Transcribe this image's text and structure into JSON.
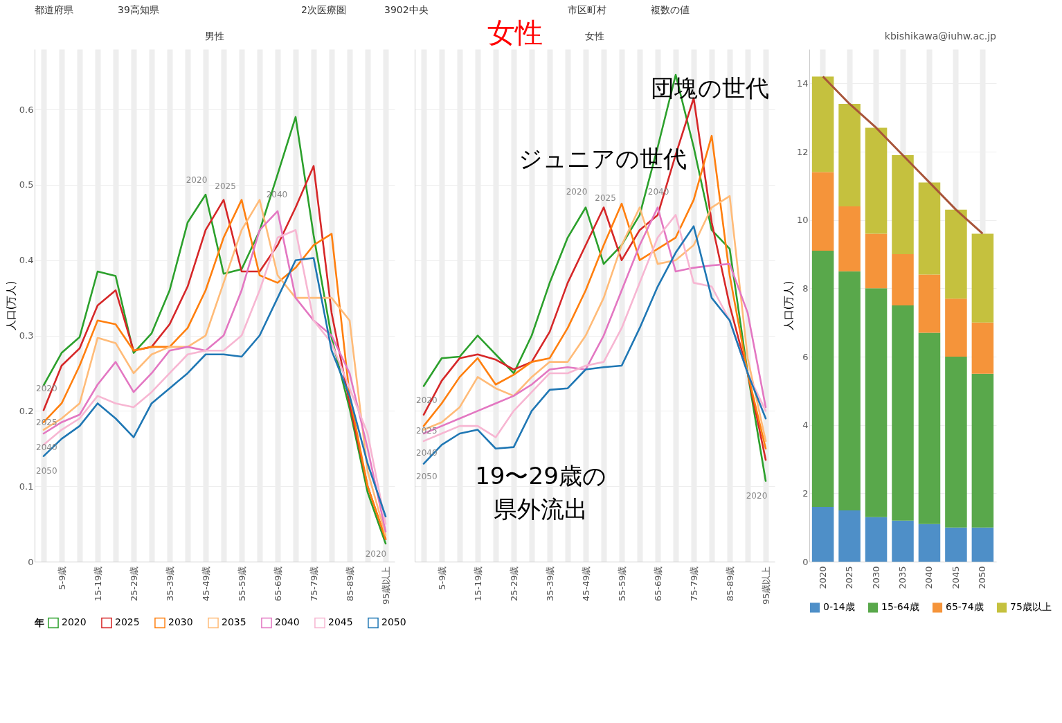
{
  "chart_data": [
    {
      "type": "line",
      "title": "男性",
      "ylabel": "人口(万人)",
      "legend_title": "年",
      "legend": "bottom",
      "grid": true,
      "categories": [
        null,
        "5-9歳",
        null,
        "15-19歳",
        null,
        "25-29歳",
        null,
        "35-39歳",
        null,
        "45-49歳",
        null,
        "55-59歳",
        null,
        "65-69歳",
        null,
        "75-79歳",
        null,
        "85-89歳",
        null,
        "95歳以上"
      ],
      "ylim": [
        0,
        0.68
      ],
      "yticks": [
        0,
        0.1,
        0.2,
        0.3,
        0.4,
        0.5,
        0.6
      ],
      "series": [
        {
          "name": "2020",
          "color": "#2ca02c",
          "values": [
            0.234,
            0.277,
            0.298,
            0.385,
            0.379,
            0.277,
            0.303,
            0.36,
            0.45,
            0.487,
            0.382,
            0.388,
            0.439,
            0.514,
            0.59,
            0.433,
            0.297,
            0.203,
            0.092,
            0.024
          ]
        },
        {
          "name": "2025",
          "color": "#d62728",
          "values": [
            0.201,
            0.26,
            0.283,
            0.34,
            0.36,
            0.28,
            0.285,
            0.315,
            0.365,
            0.44,
            0.48,
            0.385,
            0.385,
            0.42,
            0.47,
            0.525,
            0.33,
            0.21,
            0.1,
            0.03
          ]
        },
        {
          "name": "2030",
          "color": "#ff7f0e",
          "values": [
            0.185,
            0.21,
            0.26,
            0.32,
            0.315,
            0.28,
            0.285,
            0.285,
            0.31,
            0.36,
            0.43,
            0.48,
            0.38,
            0.37,
            0.39,
            0.42,
            0.435,
            0.22,
            0.1,
            0.03
          ]
        },
        {
          "name": "2035",
          "color": "#ffbb78",
          "values": [
            0.175,
            0.19,
            0.21,
            0.297,
            0.29,
            0.25,
            0.275,
            0.285,
            0.285,
            0.3,
            0.37,
            0.44,
            0.48,
            0.38,
            0.35,
            0.35,
            0.35,
            0.32,
            0.12,
            0.035
          ]
        },
        {
          "name": "2040",
          "color": "#e377c2",
          "values": [
            0.17,
            0.185,
            0.195,
            0.235,
            0.265,
            0.225,
            0.25,
            0.28,
            0.285,
            0.28,
            0.3,
            0.36,
            0.44,
            0.465,
            0.35,
            0.32,
            0.3,
            0.25,
            0.15,
            0.04
          ]
        },
        {
          "name": "2045",
          "color": "#f7b6d2",
          "values": [
            0.155,
            0.175,
            0.19,
            0.22,
            0.21,
            0.205,
            0.225,
            0.25,
            0.275,
            0.28,
            0.28,
            0.3,
            0.36,
            0.43,
            0.44,
            0.32,
            0.29,
            0.23,
            0.17,
            0.05
          ]
        },
        {
          "name": "2050",
          "color": "#1f77b4",
          "values": [
            0.14,
            0.163,
            0.18,
            0.21,
            0.19,
            0.165,
            0.21,
            0.23,
            0.25,
            0.275,
            0.275,
            0.272,
            0.3,
            0.35,
            0.4,
            0.403,
            0.28,
            0.22,
            0.13,
            0.06
          ]
        }
      ],
      "annotations": [
        "都道府県",
        "39高知県",
        "2次医療圏",
        "3902中央",
        "市区町村",
        "複数の値",
        "2020",
        "2025",
        "2040",
        "2050",
        "2020",
        "2025",
        "2040",
        "2020"
      ]
    },
    {
      "type": "line",
      "title": "女性",
      "grid": true,
      "tick_labels": "x",
      "categories": [
        null,
        "5-9歳",
        null,
        "15-19歳",
        null,
        "25-29歳",
        null,
        "35-39歳",
        null,
        "45-49歳",
        null,
        "55-59歳",
        null,
        "65-69歳",
        null,
        "75-79歳",
        null,
        "85-89歳",
        null,
        "95歳以上"
      ],
      "ylim": [
        0,
        0.68
      ],
      "yticks": [
        0,
        0.1,
        0.2,
        0.3,
        0.4,
        0.5,
        0.6
      ],
      "series": [
        {
          "color": "#2ca02c",
          "values": [
            0.233,
            0.27,
            0.272,
            0.3,
            0.275,
            0.25,
            0.3,
            0.37,
            0.43,
            0.47,
            0.395,
            0.42,
            0.46,
            0.55,
            0.646,
            0.55,
            0.44,
            0.415,
            0.25,
            0.107
          ]
        },
        {
          "color": "#d62728",
          "values": [
            0.195,
            0.24,
            0.27,
            0.275,
            0.268,
            0.255,
            0.265,
            0.305,
            0.37,
            0.42,
            0.47,
            0.4,
            0.44,
            0.46,
            0.54,
            0.615,
            0.45,
            0.34,
            0.25,
            0.135
          ]
        },
        {
          "color": "#ff7f0e",
          "values": [
            0.18,
            0.21,
            0.245,
            0.27,
            0.235,
            0.248,
            0.265,
            0.27,
            0.31,
            0.36,
            0.42,
            0.475,
            0.4,
            0.415,
            0.43,
            0.48,
            0.565,
            0.38,
            0.25,
            0.15
          ]
        },
        {
          "color": "#ffbb78",
          "values": [
            0.175,
            0.185,
            0.205,
            0.245,
            0.23,
            0.22,
            0.245,
            0.265,
            0.265,
            0.3,
            0.35,
            0.42,
            0.47,
            0.395,
            0.4,
            0.42,
            0.47,
            0.485,
            0.27,
            0.16
          ]
        },
        {
          "color": "#e377c2",
          "values": [
            0.17,
            0.18,
            0.19,
            0.2,
            0.21,
            0.22,
            0.235,
            0.255,
            0.258,
            0.255,
            0.3,
            0.36,
            0.42,
            0.47,
            0.385,
            0.39,
            0.393,
            0.395,
            0.33,
            0.205
          ]
        },
        {
          "color": "#f7b6d2",
          "values": [
            0.16,
            0.17,
            0.18,
            0.18,
            0.165,
            0.2,
            0.225,
            0.25,
            0.25,
            0.26,
            0.265,
            0.31,
            0.37,
            0.43,
            0.46,
            0.37,
            0.365,
            0.32,
            0.25,
            0.2
          ]
        },
        {
          "color": "#1f77b4",
          "values": [
            0.13,
            0.155,
            0.17,
            0.175,
            0.15,
            0.152,
            0.2,
            0.228,
            0.23,
            0.255,
            0.258,
            0.26,
            0.31,
            0.365,
            0.41,
            0.445,
            0.35,
            0.32,
            0.25,
            0.19
          ]
        }
      ],
      "annotations": [
        "女性",
        "団塊の世代",
        "ジュニアの世代",
        "19〜29歳の",
        "県外流出",
        "2020",
        "2025",
        "2040",
        "2050",
        "2020",
        "2025",
        "2040",
        "2020"
      ]
    },
    {
      "type": "bar",
      "stacked": true,
      "ylabel": "人口(万人)",
      "legend": "bottom",
      "grid": true,
      "categories": [
        "2020",
        "2025",
        "2030",
        "2035",
        "2040",
        "2045",
        "2050"
      ],
      "ylim": [
        0,
        15
      ],
      "yticks": [
        0,
        2,
        4,
        6,
        8,
        10,
        12,
        14
      ],
      "series": [
        {
          "name": "0-14歳",
          "color": "#4e8fc8",
          "values": [
            1.6,
            1.5,
            1.3,
            1.2,
            1.1,
            1.0,
            1.0
          ]
        },
        {
          "name": "15-64歳",
          "color": "#59a84b",
          "values": [
            7.5,
            7.0,
            6.7,
            6.3,
            5.6,
            5.0,
            4.5
          ]
        },
        {
          "name": "65-74歳",
          "color": "#f5943a",
          "values": [
            2.3,
            1.9,
            1.6,
            1.5,
            1.7,
            1.7,
            1.5
          ]
        },
        {
          "name": "75歳以上",
          "color": "#c5c13e",
          "values": [
            2.8,
            3.0,
            3.1,
            2.9,
            2.7,
            2.6,
            2.6
          ]
        },
        {
          "type": "line",
          "color": "#a8553a",
          "values": [
            14.2,
            13.4,
            12.7,
            11.9,
            11.1,
            10.3,
            9.6
          ]
        }
      ],
      "annotations": [
        "kbishikawa@iuhw.ac.jp"
      ]
    }
  ]
}
